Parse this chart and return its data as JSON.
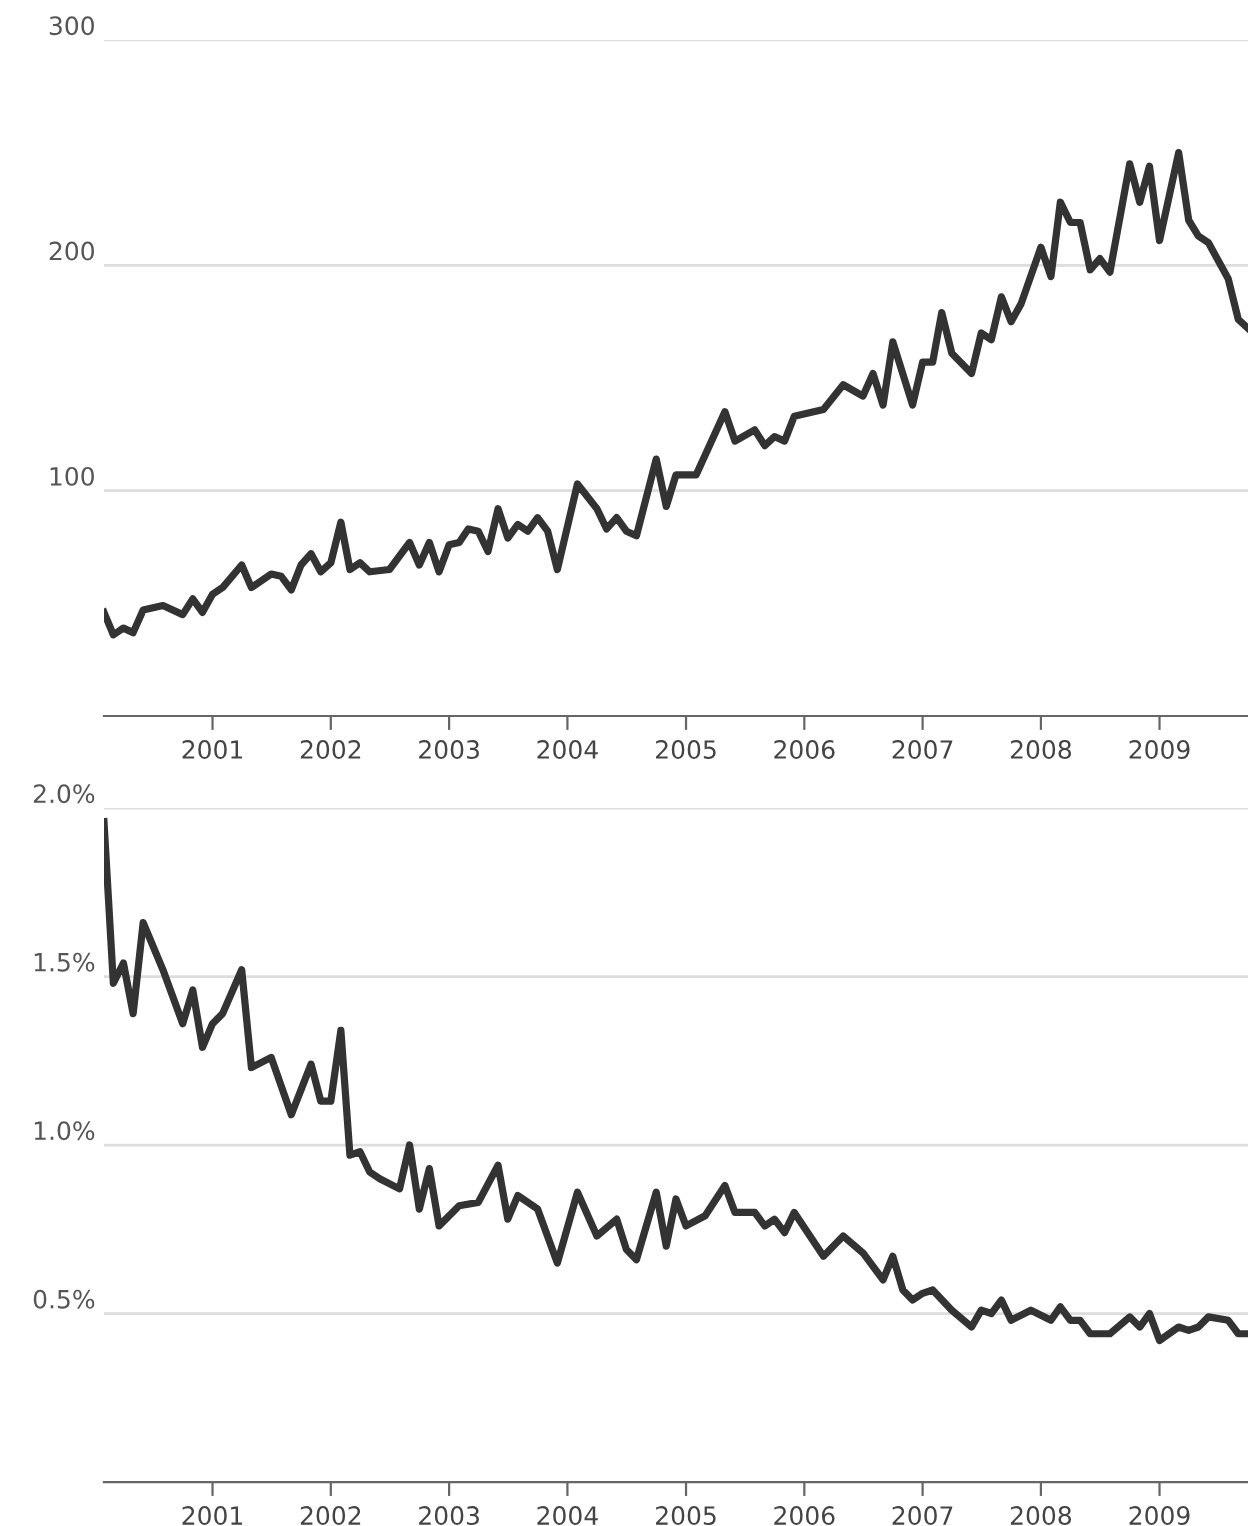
{
  "chart_data": [
    {
      "type": "line",
      "x": [
        "2000-02",
        "2000-03",
        "2000-04",
        "2000-05",
        "2000-06",
        "2000-08",
        "2000-10",
        "2000-11",
        "2000-12",
        "2001-01",
        "2001-02",
        "2001-04",
        "2001-05",
        "2001-07",
        "2001-08",
        "2001-09",
        "2001-10",
        "2001-11",
        "2001-12",
        "2002-01",
        "2002-02",
        "2002-03",
        "2002-04",
        "2002-05",
        "2002-07",
        "2002-09",
        "2002-10",
        "2002-11",
        "2002-12",
        "2003-01",
        "2003-02",
        "2003-03",
        "2003-04",
        "2003-05",
        "2003-06",
        "2003-07",
        "2003-08",
        "2003-09",
        "2003-10",
        "2003-11",
        "2003-12",
        "2004-02",
        "2004-04",
        "2004-05",
        "2004-06",
        "2004-07",
        "2004-08",
        "2004-10",
        "2004-11",
        "2004-12",
        "2005-02",
        "2005-05",
        "2005-06",
        "2005-08",
        "2005-09",
        "2005-10",
        "2005-11",
        "2005-12",
        "2006-03",
        "2006-05",
        "2006-07",
        "2006-08",
        "2006-09",
        "2006-10",
        "2006-12",
        "2007-01",
        "2007-02",
        "2007-03",
        "2007-04",
        "2007-06",
        "2007-07",
        "2007-08",
        "2007-09",
        "2007-10",
        "2007-11",
        "2008-01",
        "2008-02",
        "2008-03",
        "2008-04",
        "2008-05",
        "2008-06",
        "2008-07",
        "2008-08",
        "2008-10",
        "2008-11",
        "2008-12",
        "2009-01",
        "2009-03",
        "2009-04",
        "2009-05",
        "2009-06",
        "2009-08",
        "2009-09",
        "2009-10"
      ],
      "series": [
        {
          "color": "#333333",
          "values": [
            46,
            36,
            39,
            37,
            47,
            49,
            45,
            52,
            46,
            54,
            57,
            67,
            57,
            63,
            62,
            56,
            67,
            72,
            64,
            68,
            86,
            65,
            68,
            64,
            65,
            77,
            67,
            77,
            64,
            76,
            77,
            83,
            82,
            73,
            92,
            79,
            85,
            82,
            88,
            82,
            65,
            103,
            92,
            83,
            88,
            82,
            80,
            114,
            93,
            107,
            107,
            135,
            122,
            127,
            120,
            124,
            122,
            133,
            136,
            147,
            142,
            152,
            138,
            166,
            138,
            157,
            157,
            179,
            161,
            152,
            170,
            167,
            186,
            175,
            183,
            208,
            195,
            228,
            219,
            219,
            198,
            203,
            197,
            245,
            228,
            244,
            211,
            250,
            220,
            213,
            210,
            194,
            176,
            172
          ]
        }
      ],
      "xlim": [
        "2000-02",
        "2009-10"
      ],
      "xticks": [
        "2001",
        "2002",
        "2003",
        "2004",
        "2005",
        "2006",
        "2007",
        "2008",
        "2009"
      ],
      "ylim": [
        0,
        300
      ],
      "yticks": [
        100,
        200,
        300
      ],
      "grid": "y",
      "marker": "none",
      "line_style": "solid"
    },
    {
      "type": "line",
      "x": [
        "2000-02",
        "2000-03",
        "2000-04",
        "2000-05",
        "2000-06",
        "2000-08",
        "2000-10",
        "2000-11",
        "2000-12",
        "2001-01",
        "2001-02",
        "2001-04",
        "2001-05",
        "2001-07",
        "2001-09",
        "2001-11",
        "2001-12",
        "2002-01",
        "2002-02",
        "2002-03",
        "2002-04",
        "2002-05",
        "2002-06",
        "2002-08",
        "2002-09",
        "2002-10",
        "2002-11",
        "2002-12",
        "2003-02",
        "2003-04",
        "2003-06",
        "2003-07",
        "2003-08",
        "2003-10",
        "2003-12",
        "2004-02",
        "2004-04",
        "2004-06",
        "2004-07",
        "2004-08",
        "2004-10",
        "2004-11",
        "2004-12",
        "2005-01",
        "2005-03",
        "2005-05",
        "2005-06",
        "2005-08",
        "2005-09",
        "2005-10",
        "2005-11",
        "2005-12",
        "2006-03",
        "2006-05",
        "2006-07",
        "2006-09",
        "2006-10",
        "2006-11",
        "2006-12",
        "2007-01",
        "2007-02",
        "2007-04",
        "2007-06",
        "2007-07",
        "2007-08",
        "2007-09",
        "2007-10",
        "2007-12",
        "2008-02",
        "2008-03",
        "2008-04",
        "2008-05",
        "2008-06",
        "2008-08",
        "2008-10",
        "2008-11",
        "2008-12",
        "2009-01",
        "2009-03",
        "2009-04",
        "2009-05",
        "2009-06",
        "2009-08",
        "2009-09",
        "2009-10"
      ],
      "series": [
        {
          "color": "#333333",
          "values": [
            1.96,
            1.48,
            1.54,
            1.39,
            1.66,
            1.52,
            1.36,
            1.46,
            1.29,
            1.36,
            1.39,
            1.52,
            1.23,
            1.26,
            1.09,
            1.24,
            1.13,
            1.13,
            1.34,
            0.97,
            0.98,
            0.92,
            0.9,
            0.87,
            1.0,
            0.81,
            0.93,
            0.76,
            0.82,
            0.83,
            0.94,
            0.78,
            0.85,
            0.81,
            0.65,
            0.86,
            0.73,
            0.78,
            0.69,
            0.66,
            0.86,
            0.7,
            0.84,
            0.76,
            0.79,
            0.88,
            0.8,
            0.8,
            0.76,
            0.78,
            0.74,
            0.8,
            0.67,
            0.73,
            0.68,
            0.6,
            0.67,
            0.57,
            0.54,
            0.56,
            0.57,
            0.51,
            0.46,
            0.51,
            0.5,
            0.54,
            0.48,
            0.51,
            0.48,
            0.52,
            0.48,
            0.48,
            0.44,
            0.44,
            0.49,
            0.46,
            0.5,
            0.42,
            0.46,
            0.45,
            0.46,
            0.49,
            0.48,
            0.44,
            0.44
          ]
        }
      ],
      "xlim": [
        "2000-02",
        "2009-10"
      ],
      "xticks": [
        "2001",
        "2002",
        "2003",
        "2004",
        "2005",
        "2006",
        "2007",
        "2008",
        "2009"
      ],
      "ylim": [
        0,
        2.0
      ],
      "yticks": [
        {
          "value": 0.5,
          "label": "0.5%"
        },
        {
          "value": 1.0,
          "label": "1.0%"
        },
        {
          "value": 1.5,
          "label": "1.5%"
        },
        {
          "value": 2.0,
          "label": "2.0%"
        }
      ],
      "grid": "y",
      "marker": "none",
      "line_style": "solid"
    }
  ]
}
